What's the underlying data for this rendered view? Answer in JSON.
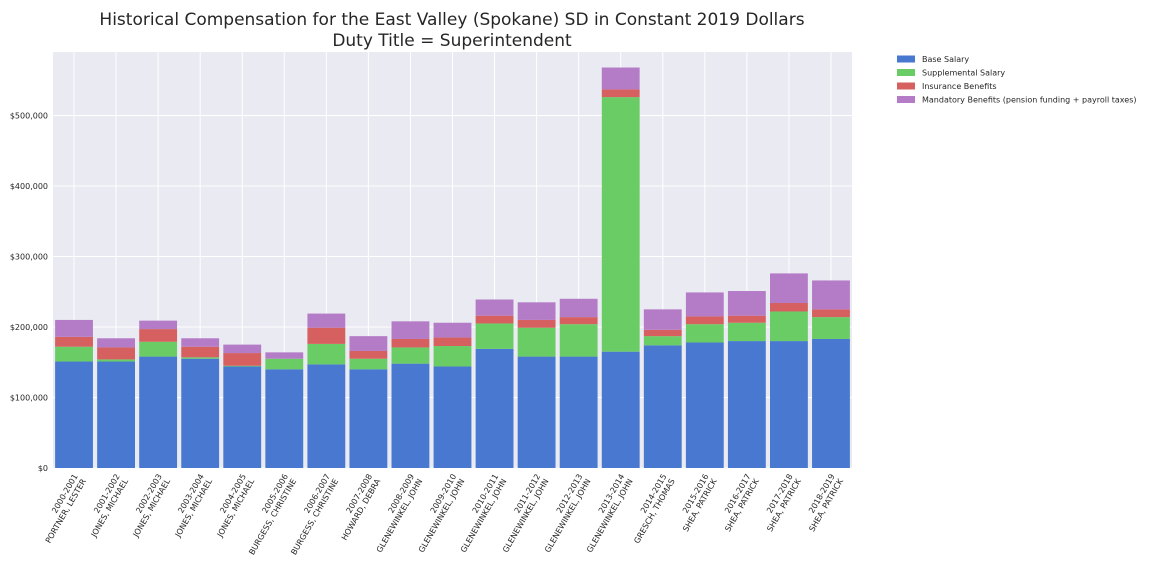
{
  "chart_data": {
    "type": "bar",
    "stacked": true,
    "title": "Historical Compensation for the East Valley (Spokane) SD in Constant 2019 Dollars",
    "subtitle": "Duty Title = Superintendent",
    "xlabel": "",
    "ylabel": "",
    "ylim": [
      0,
      590000
    ],
    "yticks": [
      {
        "value": 0,
        "label": "$0"
      },
      {
        "value": 100000,
        "label": "$100,000"
      },
      {
        "value": 200000,
        "label": "$200,000"
      },
      {
        "value": 300000,
        "label": "$300,000"
      },
      {
        "value": 400000,
        "label": "$400,000"
      },
      {
        "value": 500000,
        "label": "$500,000"
      }
    ],
    "grid": true,
    "legend_position": "outside top-right",
    "categories": [
      {
        "year": "2000-2001",
        "name": "PORTNER, LESTER"
      },
      {
        "year": "2001-2002",
        "name": "JONES, MICHAEL"
      },
      {
        "year": "2002-2003",
        "name": "JONES, MICHAEL"
      },
      {
        "year": "2003-2004",
        "name": "JONES, MICHAEL"
      },
      {
        "year": "2004-2005",
        "name": "JONES, MICHAEL"
      },
      {
        "year": "2005-2006",
        "name": "BURGESS, CHRISTINE"
      },
      {
        "year": "2006-2007",
        "name": "BURGESS, CHRISTINE"
      },
      {
        "year": "2007-2008",
        "name": "HOWARD, DEBRA"
      },
      {
        "year": "2008-2009",
        "name": "GLENEWINKEL, JOHN"
      },
      {
        "year": "2009-2010",
        "name": "GLENEWINKEL, JOHN"
      },
      {
        "year": "2010-2011",
        "name": "GLENEWINKEL, JOHN"
      },
      {
        "year": "2011-2012",
        "name": "GLENEWINKEL, JOHN"
      },
      {
        "year": "2012-2013",
        "name": "GLENEWINKEL, JOHN"
      },
      {
        "year": "2013-2014",
        "name": "GLENEWINKEL, JOHN"
      },
      {
        "year": "2014-2015",
        "name": "GRESCH, THOMAS"
      },
      {
        "year": "2015-2016",
        "name": "SHEA, PATRICK"
      },
      {
        "year": "2016-2017",
        "name": "SHEA, PATRICK"
      },
      {
        "year": "2017-2018",
        "name": "SHEA, PATRICK"
      },
      {
        "year": "2018-2019",
        "name": "SHEA, PATRICK"
      }
    ],
    "series": [
      {
        "name": "Base Salary",
        "color": "#4878cf",
        "values": [
          151000,
          151000,
          158000,
          155000,
          144000,
          140000,
          147000,
          140000,
          148000,
          144000,
          169000,
          158000,
          158000,
          165000,
          174000,
          178000,
          180000,
          180000,
          183000
        ]
      },
      {
        "name": "Supplemental Salary",
        "color": "#6acc65",
        "values": [
          21000,
          3000,
          21000,
          2000,
          1000,
          15000,
          29000,
          15000,
          23000,
          29000,
          36000,
          41000,
          46000,
          361000,
          13000,
          26000,
          26000,
          42000,
          31000
        ]
      },
      {
        "name": "Insurance Benefits",
        "color": "#d65f5f",
        "values": [
          14000,
          17000,
          18000,
          15000,
          18000,
          0,
          23000,
          11000,
          12000,
          12000,
          11000,
          11000,
          10000,
          11000,
          9000,
          11000,
          10000,
          12000,
          11000
        ]
      },
      {
        "name": "Mandatory Benefits (pension funding + payroll taxes)",
        "color": "#b47cc7",
        "values": [
          24000,
          13000,
          12000,
          12000,
          12000,
          9000,
          20000,
          21000,
          25000,
          21000,
          23000,
          25000,
          26000,
          31000,
          29000,
          34000,
          35000,
          42000,
          41000
        ]
      }
    ]
  }
}
